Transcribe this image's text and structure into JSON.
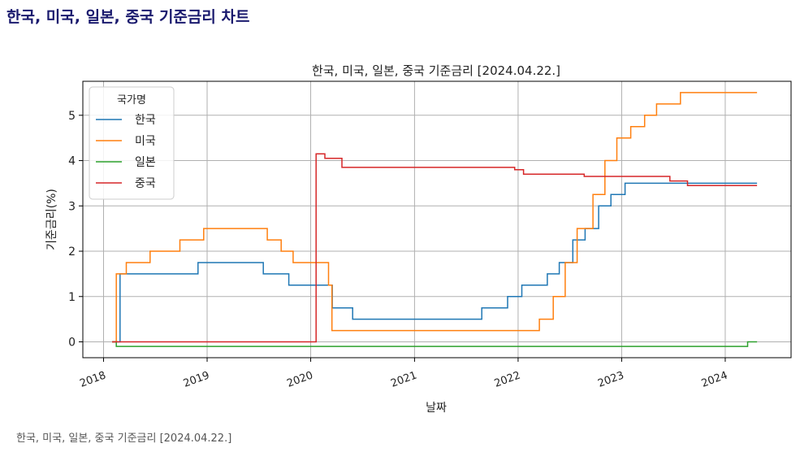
{
  "page": {
    "heading": "한국, 미국, 일본, 중국 기준금리 차트",
    "caption": "한국, 미국, 일본, 중국 기준금리 [2024.04.22.]"
  },
  "chart_data": {
    "type": "line",
    "title": "한국, 미국, 일본, 중국 기준금리 [2024.04.22.]",
    "xlabel": "날짜",
    "ylabel": "기준금리(%)",
    "xlim": [
      "2017-10-20",
      "2024-08-20"
    ],
    "ylim": [
      -0.35,
      5.75
    ],
    "x_ticks": [
      "2018",
      "2019",
      "2020",
      "2021",
      "2022",
      "2023",
      "2024"
    ],
    "y_ticks": [
      "0",
      "1",
      "2",
      "3",
      "4",
      "5"
    ],
    "grid": true,
    "legend": {
      "title": "국가명",
      "placement": "top-left"
    },
    "series": [
      {
        "name": "한국",
        "color": "#1f77b4",
        "points": [
          [
            "2018-01-31",
            0
          ],
          [
            "2018-02-28",
            1.5
          ],
          [
            "2018-11-30",
            1.75
          ],
          [
            "2019-07-18",
            1.5
          ],
          [
            "2019-10-16",
            1.25
          ],
          [
            "2020-03-17",
            0.75
          ],
          [
            "2020-05-28",
            0.5
          ],
          [
            "2021-08-26",
            0.75
          ],
          [
            "2021-11-25",
            1.0
          ],
          [
            "2022-01-14",
            1.25
          ],
          [
            "2022-04-14",
            1.5
          ],
          [
            "2022-05-26",
            1.75
          ],
          [
            "2022-07-13",
            2.25
          ],
          [
            "2022-08-25",
            2.5
          ],
          [
            "2022-10-12",
            3.0
          ],
          [
            "2022-11-24",
            3.25
          ],
          [
            "2023-01-13",
            3.5
          ],
          [
            "2024-04-22",
            3.5
          ]
        ]
      },
      {
        "name": "미국",
        "color": "#ff7f0e",
        "points": [
          [
            "2018-01-31",
            0
          ],
          [
            "2018-02-15",
            1.5
          ],
          [
            "2018-03-22",
            1.75
          ],
          [
            "2018-06-14",
            2.0
          ],
          [
            "2018-09-27",
            2.25
          ],
          [
            "2018-12-20",
            2.5
          ],
          [
            "2019-08-01",
            2.25
          ],
          [
            "2019-09-19",
            2.0
          ],
          [
            "2019-10-31",
            1.75
          ],
          [
            "2020-03-04",
            1.25
          ],
          [
            "2020-03-16",
            0.25
          ],
          [
            "2022-03-17",
            0.5
          ],
          [
            "2022-05-05",
            1.0
          ],
          [
            "2022-06-16",
            1.75
          ],
          [
            "2022-07-28",
            2.5
          ],
          [
            "2022-09-22",
            3.25
          ],
          [
            "2022-11-03",
            4.0
          ],
          [
            "2022-12-15",
            4.5
          ],
          [
            "2023-02-02",
            4.75
          ],
          [
            "2023-03-23",
            5.0
          ],
          [
            "2023-05-04",
            5.25
          ],
          [
            "2023-07-27",
            5.5
          ],
          [
            "2024-04-22",
            5.5
          ]
        ]
      },
      {
        "name": "일본",
        "color": "#2ca02c",
        "points": [
          [
            "2018-01-31",
            0
          ],
          [
            "2018-02-15",
            -0.1
          ],
          [
            "2024-03-19",
            -0.1
          ],
          [
            "2024-03-20",
            0.0
          ],
          [
            "2024-04-22",
            0.0
          ]
        ]
      },
      {
        "name": "중국",
        "color": "#d62728",
        "points": [
          [
            "2018-01-31",
            0
          ],
          [
            "2020-01-20",
            4.15
          ],
          [
            "2020-02-20",
            4.05
          ],
          [
            "2020-04-20",
            3.85
          ],
          [
            "2021-12-20",
            3.8
          ],
          [
            "2022-01-20",
            3.7
          ],
          [
            "2022-08-22",
            3.65
          ],
          [
            "2023-06-20",
            3.55
          ],
          [
            "2023-08-21",
            3.45
          ],
          [
            "2024-04-22",
            3.45
          ]
        ]
      }
    ]
  }
}
